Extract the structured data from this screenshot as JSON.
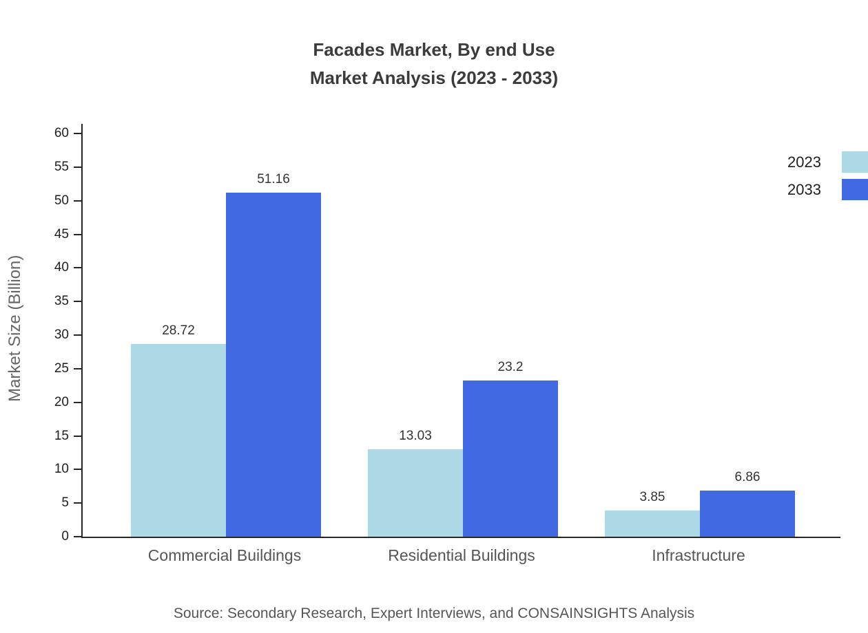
{
  "chart_data": {
    "type": "bar",
    "title": "Facades Market, By end Use Market Analysis (2023 - 2033)",
    "title_lines": [
      "Facades Market, By end Use",
      "Market Analysis (2023 - 2033)"
    ],
    "categories": [
      "Commercial Buildings",
      "Residential Buildings",
      "Infrastructure"
    ],
    "series": [
      {
        "name": "2023",
        "color": "#ADD8E6",
        "values": [
          28.72,
          13.03,
          3.85
        ]
      },
      {
        "name": "2033",
        "color": "#4169E1",
        "values": [
          51.16,
          23.2,
          6.86
        ]
      }
    ],
    "value_labels": [
      [
        "28.72",
        "13.03",
        "3.85"
      ],
      [
        "51.16",
        "23.2",
        "6.86"
      ]
    ],
    "xlabel": "",
    "ylabel": "Market Size (Billion)",
    "ylim": [
      0,
      60
    ],
    "yticks": [
      0,
      5,
      10,
      15,
      20,
      25,
      30,
      35,
      40,
      45,
      50,
      55,
      60
    ],
    "grid": false,
    "legend_position": "top-right",
    "axis_color": "#262626"
  },
  "footer": {
    "source": "Source: Secondary Research, Expert Interviews, and CONSAINSIGHTS Analysis"
  }
}
